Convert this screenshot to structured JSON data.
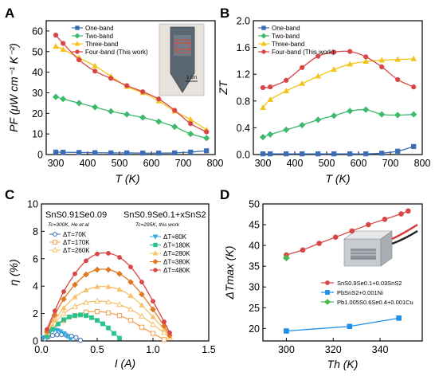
{
  "figure_title": "",
  "colors": {
    "one_band": "#3a6db5",
    "two_band": "#3cb96b",
    "three_band": "#f0c419",
    "four_band": "#d94545",
    "orange": "#f0a050",
    "dark_orange": "#e07820",
    "yellow_c": "#f5c16b",
    "blue_c": "#38a8e0",
    "green_c": "#28c48a",
    "ni_blue": "#1f8fe8",
    "cu_green": "#48b64a"
  },
  "chart_data": [
    {
      "panel": "A",
      "type": "line",
      "xlabel": "T (K)",
      "ylabel": "PF (μW cm⁻¹ K⁻²)",
      "xlim": [
        270,
        800
      ],
      "ylim": [
        0,
        65
      ],
      "xticks": [
        "300",
        "400",
        "500",
        "600",
        "700",
        "800"
      ],
      "yticks": [
        "0",
        "10",
        "20",
        "30",
        "40",
        "50",
        "60"
      ],
      "legend_position": "top-left",
      "inset_text": "1 cm",
      "series": [
        {
          "name": "One-band",
          "marker": "square",
          "color": "#3a6db5",
          "x": [
            300,
            323,
            373,
            423,
            473,
            523,
            573,
            623,
            673,
            723,
            773
          ],
          "y": [
            1.2,
            1.1,
            1.0,
            0.9,
            0.8,
            0.8,
            0.7,
            0.7,
            0.8,
            1.2,
            1.8
          ]
        },
        {
          "name": "Two-band",
          "marker": "diamond",
          "color": "#3cb96b",
          "x": [
            300,
            323,
            373,
            423,
            473,
            523,
            573,
            623,
            673,
            723,
            773
          ],
          "y": [
            28,
            27,
            25,
            23,
            21,
            19.5,
            18,
            16,
            13.5,
            10,
            8
          ]
        },
        {
          "name": "Three-band",
          "marker": "triangle",
          "color": "#f0c419",
          "x": [
            300,
            323,
            373,
            423,
            473,
            523,
            573,
            623,
            673,
            723,
            773
          ],
          "y": [
            52.5,
            51,
            47,
            43,
            38,
            33,
            30,
            26,
            21,
            17,
            12
          ]
        },
        {
          "name": "Four-band (This work)",
          "marker": "circle",
          "color": "#d94545",
          "x": [
            300,
            323,
            373,
            423,
            473,
            523,
            573,
            623,
            673,
            723,
            773
          ],
          "y": [
            58,
            54,
            46,
            40.5,
            37,
            33.5,
            30.5,
            27,
            21.5,
            15,
            11
          ]
        }
      ]
    },
    {
      "panel": "B",
      "type": "line",
      "xlabel": "T (K)",
      "ylabel": "ZT",
      "xlim": [
        270,
        800
      ],
      "ylim": [
        0,
        2.0
      ],
      "xticks": [
        "300",
        "400",
        "500",
        "600",
        "700",
        "800"
      ],
      "yticks": [
        "0.0",
        "0.4",
        "0.8",
        "1.2",
        "1.6",
        "2.0"
      ],
      "legend_position": "top-left",
      "series": [
        {
          "name": "One-band",
          "marker": "square",
          "color": "#3a6db5",
          "x": [
            300,
            323,
            373,
            423,
            473,
            523,
            573,
            623,
            673,
            723,
            773
          ],
          "y": [
            0.01,
            0.01,
            0.01,
            0.01,
            0.01,
            0.01,
            0.01,
            0.01,
            0.02,
            0.05,
            0.12
          ]
        },
        {
          "name": "Two-band",
          "marker": "diamond",
          "color": "#3cb96b",
          "x": [
            300,
            323,
            373,
            423,
            473,
            523,
            573,
            623,
            673,
            723,
            773
          ],
          "y": [
            0.26,
            0.3,
            0.37,
            0.44,
            0.52,
            0.58,
            0.65,
            0.67,
            0.6,
            0.59,
            0.6
          ]
        },
        {
          "name": "Three-band",
          "marker": "triangle",
          "color": "#f0c419",
          "x": [
            300,
            323,
            373,
            423,
            473,
            523,
            573,
            623,
            673,
            723,
            773
          ],
          "y": [
            0.7,
            0.82,
            0.95,
            1.06,
            1.17,
            1.27,
            1.35,
            1.39,
            1.41,
            1.42,
            1.43
          ]
        },
        {
          "name": "Four-band (This work)",
          "marker": "circle",
          "color": "#d94545",
          "x": [
            300,
            323,
            373,
            423,
            473,
            523,
            573,
            623,
            673,
            723,
            773
          ],
          "y": [
            1.0,
            1.01,
            1.11,
            1.3,
            1.47,
            1.53,
            1.54,
            1.46,
            1.31,
            1.12,
            1.01
          ]
        }
      ]
    },
    {
      "panel": "C",
      "type": "line",
      "xlabel": "I (A)",
      "ylabel": "η (%)",
      "xlim": [
        0,
        1.5
      ],
      "ylim": [
        0,
        10
      ],
      "xticks": [
        "0.0",
        "0.5",
        "1.0",
        "1.5"
      ],
      "yticks": [
        "0",
        "2",
        "4",
        "6",
        "8",
        "10"
      ],
      "title_left": "SnS0.91Se0.09",
      "title_right": "SnS0.9Se0.1+xSnS2",
      "note_left": "Tc=300K, He et al",
      "note_right": "Tc=295K, this work",
      "series": [
        {
          "name": "ΔT=70K",
          "group": "left",
          "marker": "circle-open",
          "color": "#3a6db5",
          "x": [
            0.03,
            0.06,
            0.1,
            0.14,
            0.18,
            0.22,
            0.27,
            0.31,
            0.35
          ],
          "y": [
            0.15,
            0.3,
            0.4,
            0.45,
            0.46,
            0.43,
            0.35,
            0.25,
            0.05
          ]
        },
        {
          "name": "ΔT=170K",
          "group": "left",
          "marker": "square-open",
          "color": "#f0a050",
          "x": [
            0.05,
            0.12,
            0.2,
            0.3,
            0.4,
            0.5,
            0.6,
            0.7,
            0.8,
            0.9,
            1.0,
            1.1
          ],
          "y": [
            0.4,
            1.0,
            1.5,
            1.85,
            2.1,
            2.15,
            2.05,
            1.85,
            1.5,
            1.0,
            0.55,
            0.1
          ]
        },
        {
          "name": "ΔT=260K",
          "group": "left",
          "marker": "triangle-open",
          "color": "#f5c16b",
          "x": [
            0.05,
            0.12,
            0.2,
            0.3,
            0.4,
            0.5,
            0.6,
            0.7,
            0.8,
            0.9,
            1.0,
            1.1,
            1.15
          ],
          "y": [
            0.55,
            1.3,
            2.0,
            2.5,
            2.8,
            2.9,
            2.85,
            2.65,
            2.3,
            1.8,
            1.2,
            0.6,
            0.25
          ]
        },
        {
          "name": "ΔT=80K",
          "group": "right",
          "marker": "triangle-down",
          "color": "#38a8e0",
          "x": [
            0.02,
            0.05,
            0.08,
            0.11,
            0.14,
            0.17,
            0.2,
            0.23,
            0.26
          ],
          "y": [
            0.25,
            0.5,
            0.7,
            0.8,
            0.78,
            0.7,
            0.55,
            0.35,
            0.12
          ]
        },
        {
          "name": "ΔT=180K",
          "group": "right",
          "marker": "square",
          "color": "#28c48a",
          "x": [
            0.05,
            0.1,
            0.15,
            0.2,
            0.25,
            0.3,
            0.35,
            0.4,
            0.45,
            0.5,
            0.55,
            0.6,
            0.65,
            0.7
          ],
          "y": [
            0.35,
            0.85,
            1.25,
            1.55,
            1.75,
            1.85,
            1.9,
            1.85,
            1.7,
            1.5,
            1.25,
            0.95,
            0.55,
            0.2
          ]
        },
        {
          "name": "ΔT=280K",
          "group": "right",
          "marker": "triangle",
          "color": "#f5c16b",
          "x": [
            0.05,
            0.12,
            0.2,
            0.3,
            0.4,
            0.5,
            0.6,
            0.7,
            0.8,
            0.9,
            1.0,
            1.1,
            1.15
          ],
          "y": [
            0.6,
            1.5,
            2.4,
            3.2,
            3.7,
            3.95,
            3.95,
            3.75,
            3.3,
            2.6,
            1.75,
            0.85,
            0.35
          ]
        },
        {
          "name": "ΔT=380K",
          "group": "right",
          "marker": "diamond",
          "color": "#e07820",
          "x": [
            0.05,
            0.12,
            0.2,
            0.3,
            0.4,
            0.5,
            0.6,
            0.7,
            0.8,
            0.9,
            1.0,
            1.1,
            1.15
          ],
          "y": [
            0.7,
            1.9,
            3.05,
            4.1,
            4.85,
            5.2,
            5.2,
            4.9,
            4.3,
            3.4,
            2.3,
            1.1,
            0.4
          ]
        },
        {
          "name": "ΔT=480K",
          "group": "right",
          "marker": "circle",
          "color": "#d94545",
          "x": [
            0.05,
            0.12,
            0.2,
            0.3,
            0.4,
            0.5,
            0.6,
            0.7,
            0.8,
            0.9,
            1.0,
            1.1,
            1.15
          ],
          "y": [
            0.85,
            2.2,
            3.6,
            4.9,
            5.85,
            6.35,
            6.4,
            6.1,
            5.4,
            4.3,
            2.9,
            1.4,
            0.6
          ]
        }
      ]
    },
    {
      "panel": "D",
      "type": "line",
      "xlabel": "Th (K)",
      "ylabel": "ΔTmax (K)",
      "xlim": [
        290,
        358
      ],
      "ylim": [
        17,
        50
      ],
      "xticks": [
        "300",
        "320",
        "340"
      ],
      "yticks": [
        "20",
        "25",
        "30",
        "35",
        "40",
        "45",
        "50"
      ],
      "legend_position": "bottom-right",
      "series": [
        {
          "name": "SnS0.9Se0.1+0.03SnS2",
          "marker": "circle",
          "color": "#d94545",
          "x": [
            300,
            307,
            314,
            321,
            328,
            335,
            342,
            349,
            352
          ],
          "y": [
            37.7,
            38.9,
            40.5,
            42.0,
            43.5,
            45.0,
            46.3,
            47.6,
            48.3
          ]
        },
        {
          "name": "PbSnS2+0.001Ni",
          "marker": "square",
          "color": "#1f8fe8",
          "x": [
            300,
            327,
            348
          ],
          "y": [
            19.4,
            20.5,
            22.5
          ]
        },
        {
          "name": "Pb1.005S0.6Se0.4+0.001Cu",
          "marker": "diamond",
          "color": "#48b64a",
          "x": [
            300
          ],
          "y": [
            37.0
          ]
        }
      ]
    }
  ],
  "panels": {
    "A": {
      "letter": "A"
    },
    "B": {
      "letter": "B"
    },
    "C": {
      "letter": "C"
    },
    "D": {
      "letter": "D"
    }
  }
}
